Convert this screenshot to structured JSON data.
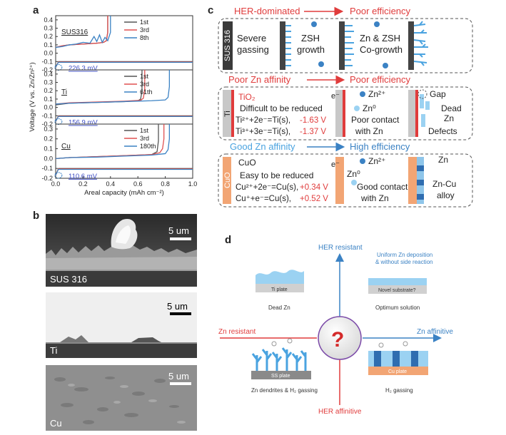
{
  "figure": {
    "panel_labels": {
      "a": "a",
      "b": "b",
      "c": "c",
      "d": "d"
    }
  },
  "chart_data": {
    "type": "line",
    "ylabel": "Voltage (V vs. Zn/Zn²⁺)",
    "xlabel": "Areal capacity (mAh cm⁻²)",
    "x_ticks": [
      "0.0",
      "0.2",
      "0.4",
      "0.6",
      "0.8",
      "1.0"
    ],
    "xlim": [
      0,
      1.0
    ],
    "subplots": [
      {
        "name": "SUS316",
        "y_ticks": [
          "0.4",
          "0.3",
          "0.2",
          "0.1",
          "0.0",
          "-0.1",
          "-0.2"
        ],
        "ylim": [
          -0.2,
          0.45
        ],
        "legend": [
          "1st",
          "3rd",
          "8th"
        ],
        "annotation": "226.3 mV",
        "colors": [
          "#555555",
          "#e05050",
          "#3b82c4"
        ],
        "series": [
          {
            "name": "1st",
            "x": [
              0.0,
              0.05,
              0.1,
              0.2,
              0.3,
              0.35,
              0.37,
              0.38,
              0.38
            ],
            "y": [
              0.07,
              0.09,
              0.1,
              0.11,
              0.12,
              0.13,
              0.15,
              0.25,
              0.45
            ]
          },
          {
            "name": "3rd",
            "x": [
              0.0,
              0.05,
              0.1,
              0.2,
              0.3,
              0.35,
              0.37,
              0.38,
              0.38
            ],
            "y": [
              0.07,
              0.09,
              0.1,
              0.11,
              0.12,
              0.13,
              0.15,
              0.25,
              0.45
            ]
          },
          {
            "name": "8th",
            "x": [
              0.0,
              0.05,
              0.1,
              0.15,
              0.2,
              0.25,
              0.28,
              0.3,
              0.32,
              0.34,
              0.36,
              0.38,
              0.4,
              0.4
            ],
            "y": [
              0.07,
              0.08,
              0.1,
              0.11,
              0.13,
              0.12,
              0.2,
              0.14,
              0.22,
              0.13,
              0.19,
              0.15,
              0.25,
              0.45
            ]
          }
        ]
      },
      {
        "name": "Ti",
        "y_ticks": [
          "0.4",
          "0.3",
          "0.2",
          "0.1",
          "0.0",
          "-0.1",
          "-0.2"
        ],
        "ylim": [
          -0.2,
          0.45
        ],
        "legend": [
          "1st",
          "3rd",
          "61th"
        ],
        "annotation": "156.9 mV",
        "colors": [
          "#555555",
          "#e05050",
          "#3b82c4"
        ],
        "series": [
          {
            "name": "1st",
            "x": [
              0.0,
              0.1,
              0.3,
              0.5,
              0.6,
              0.62,
              0.63,
              0.63
            ],
            "y": [
              0.03,
              0.05,
              0.06,
              0.07,
              0.08,
              0.1,
              0.2,
              0.45
            ]
          },
          {
            "name": "3rd",
            "x": [
              0.0,
              0.1,
              0.3,
              0.5,
              0.62,
              0.64,
              0.65,
              0.65
            ],
            "y": [
              0.04,
              0.055,
              0.065,
              0.075,
              0.085,
              0.11,
              0.22,
              0.45
            ]
          },
          {
            "name": "61th",
            "x": [
              0.0,
              0.1,
              0.3,
              0.5,
              0.7,
              0.8,
              0.82,
              0.83,
              0.83
            ],
            "y": [
              0.04,
              0.05,
              0.06,
              0.07,
              0.08,
              0.09,
              0.12,
              0.25,
              0.45
            ]
          }
        ]
      },
      {
        "name": "Cu",
        "y_ticks": [
          "0.3",
          "0.2",
          "0.1",
          "0.0",
          "-0.1",
          "-0.2"
        ],
        "ylim": [
          -0.2,
          0.35
        ],
        "legend": [
          "1st",
          "3rd",
          "180th"
        ],
        "annotation": "110.6 mV",
        "colors": [
          "#555555",
          "#e05050",
          "#3b82c4"
        ],
        "series": [
          {
            "name": "1st",
            "x": [
              0.0,
              0.1,
              0.3,
              0.5,
              0.7,
              0.74,
              0.75,
              0.75
            ],
            "y": [
              0.0,
              0.01,
              0.02,
              0.03,
              0.04,
              0.07,
              0.18,
              0.35
            ]
          },
          {
            "name": "3rd",
            "x": [
              0.0,
              0.1,
              0.3,
              0.5,
              0.7,
              0.76,
              0.78,
              0.79,
              0.79
            ],
            "y": [
              0.0,
              0.01,
              0.02,
              0.03,
              0.04,
              0.06,
              0.1,
              0.2,
              0.35
            ]
          },
          {
            "name": "180th",
            "x": [
              0.0,
              0.1,
              0.3,
              0.5,
              0.7,
              0.8,
              0.82,
              0.83,
              0.83
            ],
            "y": [
              0.0,
              0.01,
              0.015,
              0.025,
              0.035,
              0.05,
              0.09,
              0.2,
              0.35
            ]
          }
        ]
      }
    ]
  },
  "sem": {
    "images": [
      {
        "label": "SUS 316",
        "scale": "5 um"
      },
      {
        "label": "Ti",
        "scale": "5 um"
      },
      {
        "label": "Cu",
        "scale": "5 um"
      }
    ]
  },
  "panel_c": {
    "rows": [
      {
        "header_left": "HER-dominated",
        "header_right": "Poor efficiency",
        "substrate": "SUS 316",
        "text1": "Severe",
        "text2": "gassing",
        "mid1": "ZSH",
        "mid2": "growth",
        "right1": "Zn & ZSH",
        "right2": "Co-growth"
      },
      {
        "header_left": "Poor Zn affinity",
        "header_right": "Poor efficiency",
        "substrate": "Ti",
        "oxide": "TiO₂",
        "line1": "Difficult to be reduced",
        "eq1": "Ti²⁺+2e⁻=Ti(s),",
        "v1": "-1.63 V",
        "eq2": "Ti³⁺+3e⁻=Ti(s),",
        "v2": "-1.37 V",
        "electron": "e⁻",
        "zn2": "Zn²⁺",
        "zn0": "Zn⁰",
        "contact1": "Poor contact",
        "contact2": "with Zn",
        "gap": "Gap",
        "dead1": "Dead",
        "dead2": "Zn",
        "defects": "Defects"
      },
      {
        "header_left": "Good Zn affinity",
        "header_right": "High efficiency",
        "substrate": "CuO",
        "oxide": "CuO",
        "line1": "Easy to be reduced",
        "eq1": "Cu²⁺+2e⁻=Cu(s),",
        "v1": "+0.34 V",
        "eq2": "Cu⁺+e⁻=Cu(s),",
        "v2": "+0.52 V",
        "electron": "e⁻",
        "zn2": "Zn²⁺",
        "zn0": "Zn⁰",
        "contact1": "Good contact",
        "contact2": "with Zn",
        "zn": "Zn",
        "alloy1": "Zn-Cu",
        "alloy2": "alloy"
      }
    ]
  },
  "panel_d": {
    "her_resistant": "HER resistant",
    "her_affinitive": "HER affinitive",
    "zn_resistant": "Zn resistant",
    "zn_affinitive": "Zn affinitive",
    "uniform1": "Uniform Zn deposition",
    "uniform2": "& without side reaction",
    "ti_plate": "Ti plate",
    "dead_zn": "Dead Zn",
    "novel": "Novel substrate?",
    "optimum": "Optimum solution",
    "ss_plate": "SS plate",
    "dendrites": "Zn dendrites & H₂ gassing",
    "cu_plate": "Cu plate",
    "h2": "H₂ gassing",
    "question": "?"
  }
}
